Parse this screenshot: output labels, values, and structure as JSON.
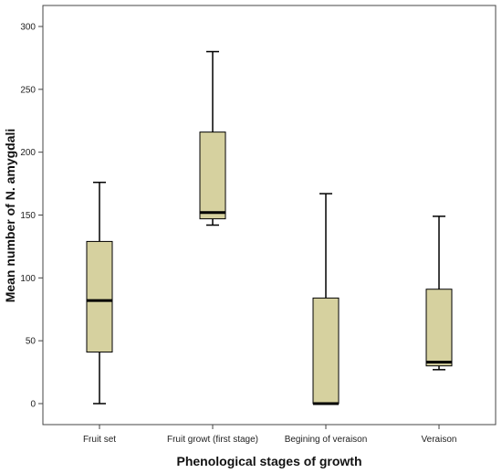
{
  "chart_data": {
    "type": "boxplot",
    "xlabel": "Phenological stages of growth",
    "ylabel": "Mean number of N. amygdali",
    "ylim": [
      -16,
      320
    ],
    "yticks": [
      0,
      50,
      100,
      150,
      200,
      250,
      300
    ],
    "grid": false,
    "box_color": "#d6d19f",
    "categories": [
      "Fruit set",
      "Fruit growt (first stage)",
      "Begining of veraison",
      "Veraison"
    ],
    "boxes": [
      {
        "category": "Fruit set",
        "min": 0,
        "q1": 41,
        "median": 82,
        "q3": 129,
        "max": 176
      },
      {
        "category": "Fruit growt (first stage)",
        "min": 142,
        "q1": 147,
        "median": 152,
        "q3": 216,
        "max": 280
      },
      {
        "category": "Begining of veraison",
        "min": 0,
        "q1": 0,
        "median": 0,
        "q3": 84,
        "max": 167
      },
      {
        "category": "Veraison",
        "min": 27,
        "q1": 30,
        "median": 33,
        "q3": 91,
        "max": 149
      }
    ]
  }
}
